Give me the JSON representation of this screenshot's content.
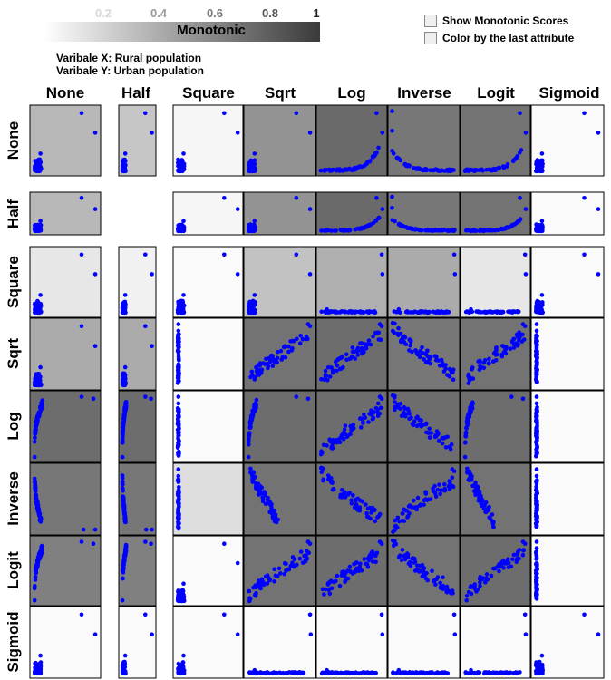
{
  "legend": {
    "title": "Monotonic",
    "ticks": [
      "0.2",
      "0.4",
      "0.6",
      "0.8",
      "1"
    ]
  },
  "variables": {
    "x_label": "Varibale X: Rural population",
    "y_label": "Varibale Y: Urban population"
  },
  "options": {
    "show_monotonic": "Show Monotonic Scores",
    "color_by_last": "Color by the last attribute"
  },
  "colors": {
    "points": "#0000ff",
    "scale_dark": "#3a3a3a",
    "scale_light": "#ffffff"
  },
  "chart_data": {
    "type": "scatter",
    "title": "",
    "columns": [
      "None",
      "Half",
      "Square",
      "Sqrt",
      "Log",
      "Inverse",
      "Logit",
      "Sigmoid"
    ],
    "rows": [
      "None",
      "Half",
      "Square",
      "Sqrt",
      "Log",
      "Inverse",
      "Logit",
      "Sigmoid"
    ],
    "scale_range": [
      0.2,
      1
    ],
    "monotonic_scores": [
      [
        0.55,
        0.48,
        0.22,
        0.75,
        0.97,
        0.9,
        0.92,
        0.1
      ],
      [
        0.55,
        null,
        0.22,
        0.75,
        0.97,
        0.9,
        0.92,
        0.1
      ],
      [
        0.3,
        0.25,
        0.2,
        0.5,
        0.6,
        0.62,
        0.3,
        0.1
      ],
      [
        0.62,
        0.62,
        0.2,
        0.92,
        0.95,
        0.9,
        0.92,
        0.05
      ],
      [
        0.95,
        0.95,
        0.1,
        0.95,
        0.95,
        0.95,
        0.95,
        0.05
      ],
      [
        0.9,
        0.9,
        0.35,
        0.92,
        0.95,
        0.95,
        0.92,
        0.05
      ],
      [
        0.85,
        0.85,
        0.15,
        0.92,
        0.95,
        0.92,
        0.95,
        0.05
      ],
      [
        0.12,
        0.12,
        0.12,
        0.12,
        0.12,
        0.12,
        0.12,
        0.18
      ]
    ],
    "point_patterns": {
      "cluster_outliers": "dense cluster near origin with two outliers at top-right",
      "log_rising": "broad increasing curve",
      "inverse_falling": "broad decreasing band",
      "flat_baseline": "points compressed along bottom axis"
    },
    "panel_patterns": [
      [
        "corner",
        "corner",
        "corner",
        "corner",
        "hockey",
        "decay",
        "hockey",
        "corner"
      ],
      [
        "corner",
        null,
        "corner",
        "corner",
        "hockey",
        "decay",
        "hockey",
        "corner"
      ],
      [
        "corner",
        "corner",
        "corner",
        "corner",
        "flat",
        "flat",
        "flat",
        "corner"
      ],
      [
        "corner",
        "corner",
        "vertical",
        "rise",
        "rise",
        "fall",
        "rise",
        "vertical"
      ],
      [
        "steep",
        "steep",
        "vertical",
        "steep",
        "rise",
        "fall",
        "steep",
        "vertical"
      ],
      [
        "invsteep",
        "invsteep",
        "vertical",
        "fallcluster",
        "fall",
        "rise",
        "fallcluster",
        "vertical"
      ],
      [
        "steep",
        "steep",
        "corner",
        "rise",
        "rise",
        "fall",
        "rise",
        "vertical"
      ],
      [
        "corner",
        "corner",
        "corner",
        "flat",
        "flat",
        "flat",
        "flat",
        "corner"
      ]
    ]
  }
}
